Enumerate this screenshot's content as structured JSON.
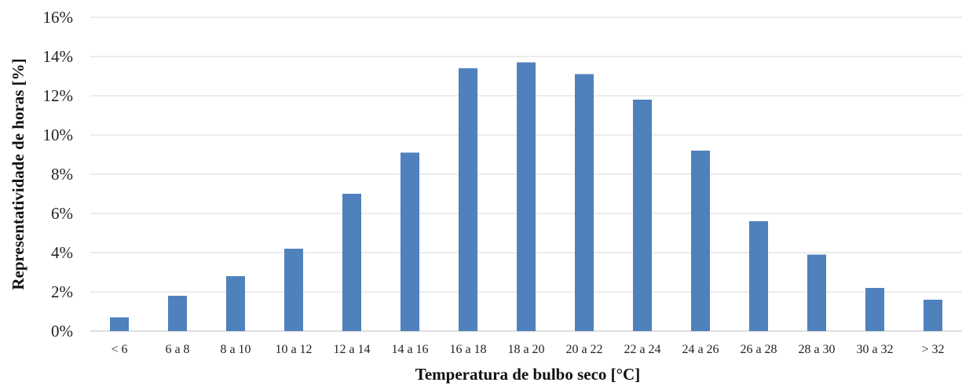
{
  "chart_data": {
    "type": "bar",
    "title": "",
    "xlabel": "Temperatura de bulbo seco [°C]",
    "ylabel": "Representatividade de horas [%]",
    "categories": [
      "< 6",
      "6 a 8",
      "8 a 10",
      "10 a 12",
      "12 a 14",
      "14 a 16",
      "16 a 18",
      "18 a 20",
      "20 a 22",
      "22 a 24",
      "24 a 26",
      "26 a 28",
      "28 a 30",
      "30 a 32",
      "> 32"
    ],
    "values": [
      0.7,
      1.8,
      2.8,
      4.2,
      7.0,
      9.1,
      13.4,
      13.7,
      13.1,
      11.8,
      9.2,
      5.6,
      3.9,
      2.2,
      1.6
    ],
    "ylim": [
      0,
      16
    ],
    "yticks": [
      "0%",
      "2%",
      "4%",
      "6%",
      "8%",
      "10%",
      "12%",
      "14%",
      "16%"
    ],
    "ytick_values": [
      0,
      2,
      4,
      6,
      8,
      10,
      12,
      14,
      16
    ],
    "grid": true,
    "legend": "none",
    "bar_color": "#4f81bd"
  }
}
